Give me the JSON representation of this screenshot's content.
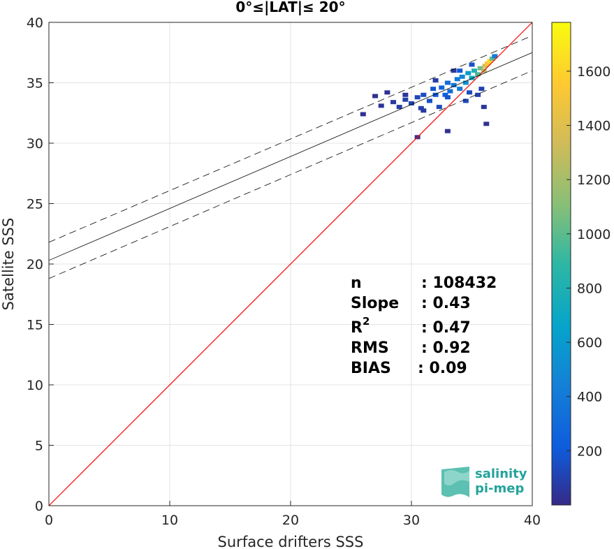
{
  "chart_data": {
    "type": "scatter",
    "title": "0°≤|LAT|≤ 20°",
    "xlabel": "Surface drifters SSS",
    "ylabel": "Satellite SSS",
    "xlim": [
      0,
      40
    ],
    "ylim": [
      0,
      40
    ],
    "xticks": [
      "0",
      "10",
      "20",
      "30",
      "40"
    ],
    "yticks": [
      "0",
      "5",
      "10",
      "15",
      "20",
      "25",
      "30",
      "35",
      "40"
    ],
    "grid": true,
    "density_colormap": "parula",
    "colorbar": {
      "range": [
        0,
        1780
      ],
      "tick_labels": [
        "200",
        "400",
        "600",
        "800",
        "1000",
        "1200",
        "1400",
        "1600"
      ],
      "tick_values": [
        200,
        400,
        600,
        800,
        1000,
        1200,
        1400,
        1600
      ]
    },
    "density_cells": [
      [
        26,
        32.4,
        30
      ],
      [
        27.5,
        33.1,
        40
      ],
      [
        28.5,
        33.4,
        60
      ],
      [
        29,
        33.0,
        80
      ],
      [
        29.5,
        33.6,
        90
      ],
      [
        30,
        33.3,
        110
      ],
      [
        30.5,
        33.8,
        120
      ],
      [
        30.8,
        32.9,
        100
      ],
      [
        31,
        34.0,
        150
      ],
      [
        31.5,
        33.5,
        160
      ],
      [
        31.8,
        34.5,
        180
      ],
      [
        32,
        34.0,
        200
      ],
      [
        32.3,
        33.0,
        140
      ],
      [
        32.5,
        34.6,
        260
      ],
      [
        32.8,
        34.0,
        240
      ],
      [
        33,
        35.0,
        300
      ],
      [
        33.2,
        34.3,
        320
      ],
      [
        33.5,
        34.8,
        380
      ],
      [
        33.8,
        35.3,
        420
      ],
      [
        34,
        34.5,
        400
      ],
      [
        34.2,
        35.5,
        480
      ],
      [
        34.5,
        35.0,
        560
      ],
      [
        34.7,
        35.8,
        600
      ],
      [
        35,
        35.4,
        700
      ],
      [
        35.2,
        36.0,
        820
      ],
      [
        35.5,
        35.7,
        950
      ],
      [
        35.7,
        36.2,
        1050
      ],
      [
        36,
        36.0,
        1200
      ],
      [
        36.1,
        36.4,
        1350
      ],
      [
        36.3,
        36.6,
        1500
      ],
      [
        36.5,
        36.8,
        1600
      ],
      [
        36.7,
        37.0,
        1000
      ],
      [
        36.9,
        37.2,
        400
      ],
      [
        34.5,
        33.5,
        120
      ],
      [
        33,
        33.8,
        180
      ],
      [
        31,
        32.7,
        60
      ],
      [
        34,
        36.0,
        200
      ],
      [
        35,
        36.5,
        160
      ],
      [
        32,
        35.2,
        80
      ],
      [
        33.5,
        36.0,
        60
      ],
      [
        35.5,
        34.0,
        90
      ],
      [
        36,
        33.0,
        50
      ],
      [
        36.2,
        31.6,
        30
      ],
      [
        33,
        31.0,
        25
      ],
      [
        30.5,
        30.5,
        30
      ],
      [
        29.5,
        34.0,
        40
      ],
      [
        28,
        34.2,
        30
      ],
      [
        27,
        33.9,
        25
      ],
      [
        35.8,
        34.5,
        100
      ],
      [
        34.8,
        34.2,
        140
      ]
    ],
    "series": [
      {
        "type": "line",
        "color": "#ff0000",
        "x": [
          0,
          40
        ],
        "y": [
          0,
          40
        ]
      },
      {
        "type": "line",
        "color": "#000000",
        "x": [
          0,
          40
        ],
        "y": [
          20.3,
          37.5
        ]
      },
      {
        "type": "line",
        "color": "#000000",
        "dashed": true,
        "x": [
          0,
          40
        ],
        "y": [
          21.8,
          38.9
        ]
      },
      {
        "type": "line",
        "color": "#000000",
        "dashed": true,
        "x": [
          0,
          40
        ],
        "y": [
          18.8,
          36.0
        ]
      }
    ],
    "stats": [
      {
        "label": "n",
        "value": ": 108432"
      },
      {
        "label": "Slope",
        "value": ": 0.43"
      },
      {
        "label": "R",
        "sup": "2",
        "value": ": 0.47"
      },
      {
        "label": "RMS",
        "value": ": 0.92"
      },
      {
        "label": "BIAS",
        "value": ": 0.09"
      }
    ]
  },
  "logo": {
    "line1": "salinity",
    "line2": "pi-mep"
  }
}
